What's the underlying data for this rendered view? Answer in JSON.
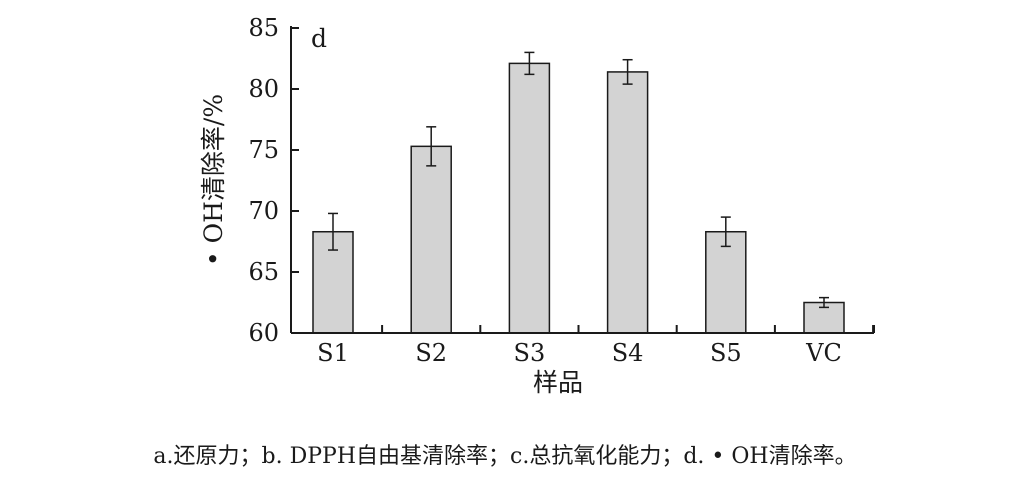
{
  "chart_data": {
    "type": "bar",
    "panel_label": "d",
    "categories": [
      "S1",
      "S2",
      "S3",
      "S4",
      "S5",
      "VC"
    ],
    "series": [
      {
        "values": [
          68.3,
          75.3,
          82.1,
          81.4,
          68.3,
          62.5
        ],
        "errors": [
          1.5,
          1.6,
          0.9,
          1.0,
          1.2,
          0.4
        ]
      }
    ],
    "xlabel": "样品",
    "ylabel": "• OH清除率/%",
    "ylim": [
      60,
      85
    ],
    "yticks": [
      60,
      65,
      70,
      75,
      80,
      85
    ],
    "grid": false,
    "colors": {
      "bar_fill": "#d3d3d3",
      "bar_stroke": "#1a1a1a",
      "axis": "#1a1a1a"
    }
  },
  "caption": "a.还原力；b. DPPH自由基清除率；c.总抗氧化能力；d. • OH清除率。"
}
